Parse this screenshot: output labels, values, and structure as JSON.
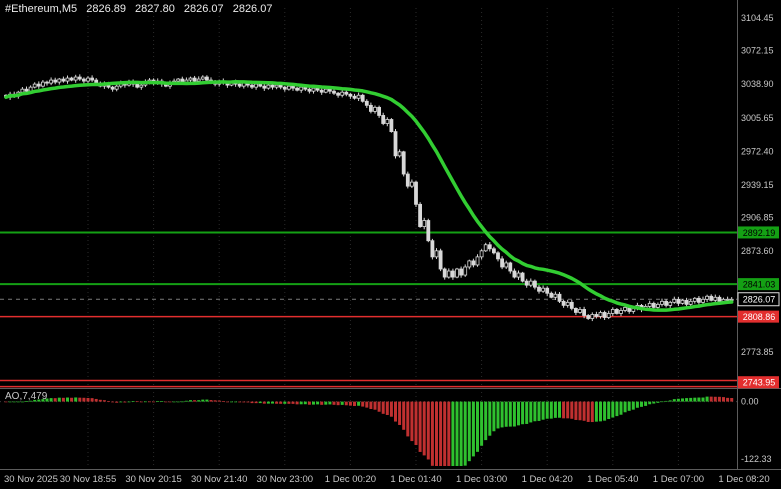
{
  "header": {
    "symbol": "#Ethereum,M5",
    "open": "2826.89",
    "high": "2827.80",
    "low": "2826.07",
    "close": "2826.07"
  },
  "indicator": {
    "label": "AO,7,479"
  },
  "colors": {
    "background": "#000000",
    "axis_text": "#c8c8c8",
    "grid": "#2b2b2b",
    "separator": "#5c5c5c"
  },
  "chart_data": [
    {
      "type": "candlestick",
      "title": "#Ethereum,M5",
      "timeframe_minutes": 5,
      "x_axis": {
        "labels": [
          "30 Nov 2025",
          "30 Nov 18:55",
          "30 Nov 20:15",
          "30 Nov 21:40",
          "30 Nov 23:00",
          "1 Dec 00:20",
          "1 Dec 01:40",
          "1 Dec 03:00",
          "1 Dec 04:20",
          "1 Dec 05:40",
          "1 Dec 07:00",
          "1 Dec 08:20"
        ]
      },
      "y_axis": {
        "ticks": [
          "3104.45",
          "3072.15",
          "3038.90",
          "3005.65",
          "2972.40",
          "2939.15",
          "2906.85",
          "2873.60",
          "2773.85"
        ]
      },
      "closes": [
        3026,
        3029,
        3027,
        3031,
        3034,
        3032,
        3036,
        3039,
        3037,
        3041,
        3040,
        3043,
        3041,
        3044,
        3042,
        3045,
        3043,
        3046,
        3044,
        3042,
        3045,
        3043,
        3040,
        3037,
        3039,
        3036,
        3034,
        3037,
        3040,
        3038,
        3041,
        3039,
        3036,
        3038,
        3041,
        3043,
        3040,
        3042,
        3039,
        3037,
        3040,
        3042,
        3044,
        3041,
        3043,
        3045,
        3042,
        3044,
        3046,
        3043,
        3041,
        3039,
        3042,
        3040,
        3038,
        3041,
        3039,
        3037,
        3040,
        3038,
        3036,
        3039,
        3037,
        3035,
        3038,
        3036,
        3038,
        3036,
        3034,
        3037,
        3035,
        3033,
        3036,
        3034,
        3032,
        3035,
        3033,
        3031,
        3034,
        3032,
        3030,
        3028,
        3031,
        3029,
        3027,
        3025,
        3028,
        3022,
        3018,
        3012,
        3016,
        3008,
        3000,
        3004,
        2992,
        2968,
        2972,
        2950,
        2938,
        2942,
        2920,
        2898,
        2904,
        2884,
        2868,
        2874,
        2856,
        2848,
        2854,
        2848,
        2856,
        2850,
        2858,
        2864,
        2860,
        2868,
        2874,
        2880,
        2876,
        2872,
        2866,
        2858,
        2862,
        2854,
        2848,
        2852,
        2844,
        2840,
        2844,
        2838,
        2834,
        2837,
        2832,
        2828,
        2831,
        2824,
        2820,
        2823,
        2817,
        2813,
        2816,
        2810,
        2807,
        2811,
        2809,
        2813,
        2808,
        2812,
        2816,
        2812,
        2815,
        2818,
        2814,
        2817,
        2820,
        2816,
        2819,
        2822,
        2818,
        2821,
        2824,
        2820,
        2823,
        2826,
        2822,
        2825,
        2821,
        2824,
        2827,
        2823,
        2826,
        2829,
        2825,
        2828,
        2824,
        2826,
        2826,
        2826
      ],
      "candle": {
        "up_fill": "#000000",
        "down_fill": "#d8d8d8",
        "stroke": "#d8d8d8"
      },
      "moving_average": {
        "period": 24,
        "color": "#32cd32",
        "width": 3.5
      },
      "levels": [
        {
          "value": 2892.19,
          "label": "2892.19",
          "color": "#14a014",
          "label_text_color": "#000000",
          "width": 2,
          "draw_line": true
        },
        {
          "value": 2841.03,
          "label": "2841.03",
          "color": "#14a014",
          "label_text_color": "#000000",
          "width": 2,
          "draw_line": true
        },
        {
          "value": 2808.86,
          "label": "2808.86",
          "color": "#e22e2e",
          "label_text_color": "#ffffff",
          "width": 1.5,
          "draw_line": true
        },
        {
          "value": 2745.6,
          "label": null,
          "color": "#e22e2e",
          "label_text_color": null,
          "width": 1.5,
          "draw_line": true
        },
        {
          "value": 2739.6,
          "label": null,
          "color": "#e22e2e",
          "label_text_color": null,
          "width": 1.5,
          "draw_line": true
        },
        {
          "value": 2743.95,
          "label": "2743.95",
          "color": "#e22e2e",
          "label_text_color": "#ffffff",
          "width": 1.5,
          "draw_line": false
        }
      ],
      "current_price": {
        "value": 2826.07,
        "label": "2826.07",
        "box_bg": "#000000",
        "box_border": "#e0e0e0",
        "text_color": "#ffffff"
      }
    },
    {
      "type": "bar",
      "name": "Awesome Oscillator",
      "label": "AO,7,479",
      "formula": "SMA5(close) - SMA34(close)",
      "up_color": "#2fc12f",
      "down_color": "#c03030",
      "scale_max": 18,
      "scale_min": -100,
      "axis_labels": [
        {
          "text": "0.00",
          "value": 0
        },
        {
          "text": "-122.33",
          "value": -122.33
        }
      ]
    }
  ]
}
